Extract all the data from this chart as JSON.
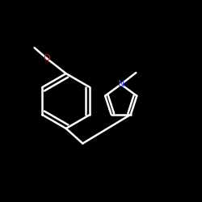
{
  "background": "#000000",
  "bond_color": "#ffffff",
  "N_font_color": "#3333ff",
  "O_font_color": "#dd1111",
  "bond_width": 1.8,
  "dbo_inner": 0.025,
  "dbo_pyrr": 0.018,
  "figsize": [
    2.5,
    2.5
  ],
  "dpi": 100,
  "xlim": [
    -0.1,
    1.1
  ],
  "ylim": [
    -0.05,
    1.05
  ]
}
